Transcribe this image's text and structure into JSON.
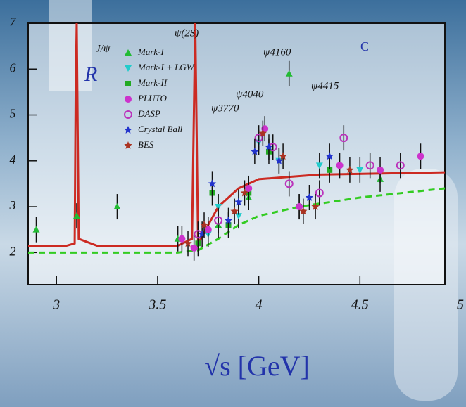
{
  "chart_data": {
    "type": "scatter",
    "y_label": "R",
    "corner_label": "C",
    "x_label": "√s [GeV]",
    "annotations": [
      "J/ψ",
      "ψ(2S)",
      "ψ3770",
      "ψ4040",
      "ψ4160",
      "ψ4415"
    ],
    "xlim": [
      2.86,
      4.92
    ],
    "ylim": [
      1.3,
      7
    ],
    "xticks": [
      3,
      3.5,
      4,
      4.5,
      5
    ],
    "yticks": [
      2,
      3,
      4,
      5,
      6,
      7
    ],
    "series": [
      {
        "name": "Mark-I",
        "color": "#22bb33",
        "marker": "triangle",
        "x": [
          2.9,
          3.1,
          3.3,
          3.6,
          3.8,
          3.95,
          4.15,
          4.6
        ],
        "values": [
          2.5,
          2.8,
          3.0,
          2.3,
          2.6,
          3.2,
          5.9,
          3.6
        ]
      },
      {
        "name": "Mark-I + LGW",
        "color": "#22cccc",
        "marker": "triangle-down",
        "x": [
          3.75,
          3.8,
          3.9,
          4.0,
          4.1,
          4.3,
          4.5
        ],
        "values": [
          2.4,
          3.0,
          2.8,
          4.4,
          4.0,
          3.9,
          3.8
        ]
      },
      {
        "name": "Mark-II",
        "color": "#22aa22",
        "marker": "square",
        "x": [
          3.7,
          3.77,
          3.85,
          3.95,
          4.05,
          4.2,
          4.35
        ],
        "values": [
          2.2,
          3.3,
          2.6,
          3.3,
          4.2,
          3.0,
          3.8
        ]
      },
      {
        "name": "PLUTO",
        "color": "#cc33cc",
        "marker": "circle",
        "x": [
          3.62,
          3.68,
          3.75,
          3.95,
          4.03,
          4.2,
          4.4,
          4.6,
          4.8
        ],
        "values": [
          2.3,
          2.1,
          2.5,
          3.4,
          4.7,
          3.0,
          3.9,
          3.8,
          4.1
        ]
      },
      {
        "name": "DASP",
        "color": "#bb33bb",
        "marker": "ring",
        "x": [
          3.7,
          3.8,
          4.0,
          4.07,
          4.15,
          4.3,
          4.42,
          4.55,
          4.7
        ],
        "values": [
          2.4,
          2.7,
          4.5,
          4.3,
          3.5,
          3.3,
          4.5,
          3.9,
          3.9
        ]
      },
      {
        "name": "Crystal Ball",
        "color": "#2233cc",
        "marker": "star",
        "x": [
          3.72,
          3.77,
          3.85,
          3.9,
          3.98,
          4.05,
          4.1,
          4.25,
          4.35
        ],
        "values": [
          2.4,
          3.5,
          2.7,
          3.1,
          4.2,
          4.3,
          4.0,
          3.2,
          4.1
        ]
      },
      {
        "name": "BES",
        "color": "#aa3322",
        "marker": "star",
        "x": [
          3.65,
          3.73,
          3.88,
          3.93,
          4.02,
          4.12,
          4.22,
          4.28,
          4.45
        ],
        "values": [
          2.2,
          2.6,
          2.9,
          3.3,
          4.6,
          4.1,
          2.9,
          3.0,
          3.8
        ]
      }
    ],
    "curves": [
      {
        "color": "#cc2a22",
        "dash": false,
        "x": [
          2.86,
          3.05,
          3.09,
          3.095,
          3.1,
          3.11,
          3.2,
          3.6,
          3.67,
          3.686,
          3.7,
          3.75,
          3.8,
          3.9,
          4.0,
          4.3,
          4.92
        ],
        "values": [
          2.15,
          2.15,
          2.2,
          5.5,
          7,
          2.3,
          2.15,
          2.15,
          2.3,
          7,
          2.2,
          2.6,
          3.0,
          3.4,
          3.6,
          3.7,
          3.75
        ]
      },
      {
        "color": "#33cc22",
        "dash": true,
        "x": [
          2.86,
          3.6,
          3.7,
          3.8,
          3.9,
          4.0,
          4.2,
          4.5,
          4.92
        ],
        "values": [
          2.0,
          2.0,
          2.05,
          2.3,
          2.6,
          2.8,
          3.0,
          3.2,
          3.4
        ]
      }
    ]
  }
}
